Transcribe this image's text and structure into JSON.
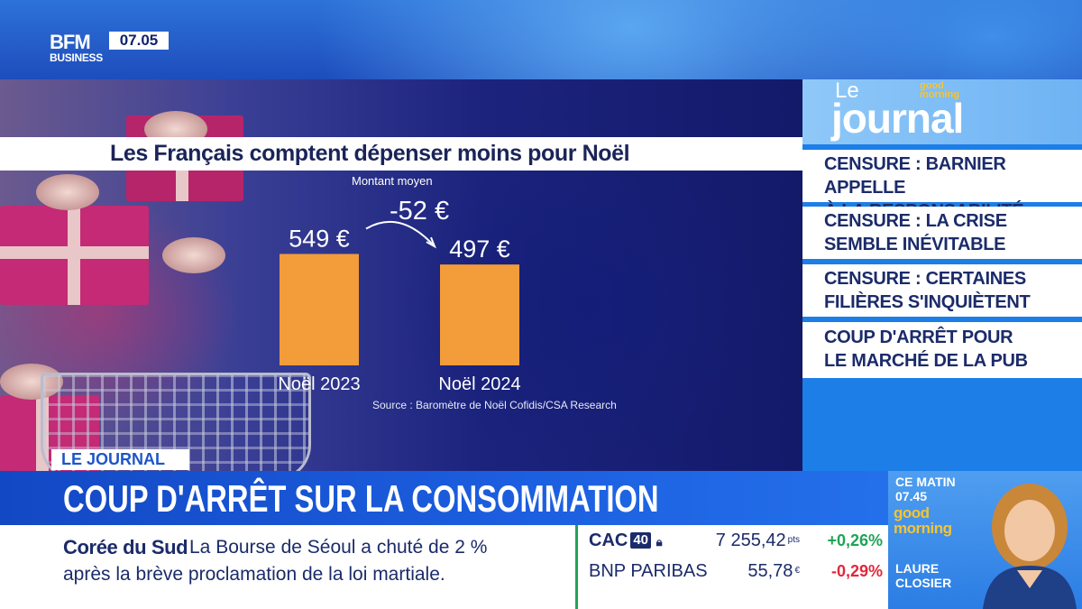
{
  "channel": {
    "logo_line1": "BFM",
    "logo_line2": "BUSINESS",
    "time": "07.05"
  },
  "chart_title": "Les Français comptent dépenser moins pour Noël",
  "chart_data": {
    "type": "bar",
    "title": "Les Français comptent dépenser moins pour Noël",
    "subtitle": "Montant moyen",
    "categories": [
      "Noël 2023",
      "Noël 2024"
    ],
    "values": [
      549,
      497
    ],
    "value_labels": [
      "549 €",
      "497 €"
    ],
    "annotation": "-52 €",
    "source": "Source : Baromètre de Noël Cofidis/CSA Research",
    "ylim": [
      0,
      600
    ],
    "bar_color": "#f39c3a"
  },
  "journal": {
    "le": "Le",
    "title": "journal",
    "show_logo": "good morning",
    "headlines": [
      [
        "CENSURE : BARNIER APPELLE",
        "À LA RESPONSABILITÉ"
      ],
      [
        "CENSURE : LA CRISE",
        "SEMBLE INÉVITABLE"
      ],
      [
        "CENSURE : CERTAINES",
        "FILIÈRES S'INQUIÈTENT"
      ],
      [
        "COUP D'ARRÊT POUR",
        "LE MARCHÉ DE LA PUB"
      ]
    ]
  },
  "banner": {
    "label": "LE JOURNAL",
    "headline": "COUP D'ARRÊT SUR LA CONSOMMATION"
  },
  "ticker": {
    "topic": "Corée du Sud",
    "line1": "La Bourse de Séoul a chuté de 2 %",
    "line2": "après la brève proclamation de la loi martiale."
  },
  "market": {
    "rows": [
      {
        "name": "CAC",
        "badge": "40",
        "value": "7 255,42",
        "unit": "pts",
        "change": "+0,26%",
        "change_color": "#1fa456"
      },
      {
        "name": "BNP PARIBAS",
        "value": "55,78",
        "unit": "€",
        "change": "-0,29%",
        "change_color": "#e0283c"
      }
    ]
  },
  "presenter": {
    "ce_matin": "CE MATIN",
    "time": "07.45",
    "show": "good morning",
    "first_name": "LAURE",
    "last_name": "CLOSIER"
  },
  "colors": {
    "brand_blue": "#1d5fe0",
    "text_navy": "#1b2b6a",
    "bar_orange": "#f39c3a",
    "gm_yellow": "#f6c431"
  }
}
